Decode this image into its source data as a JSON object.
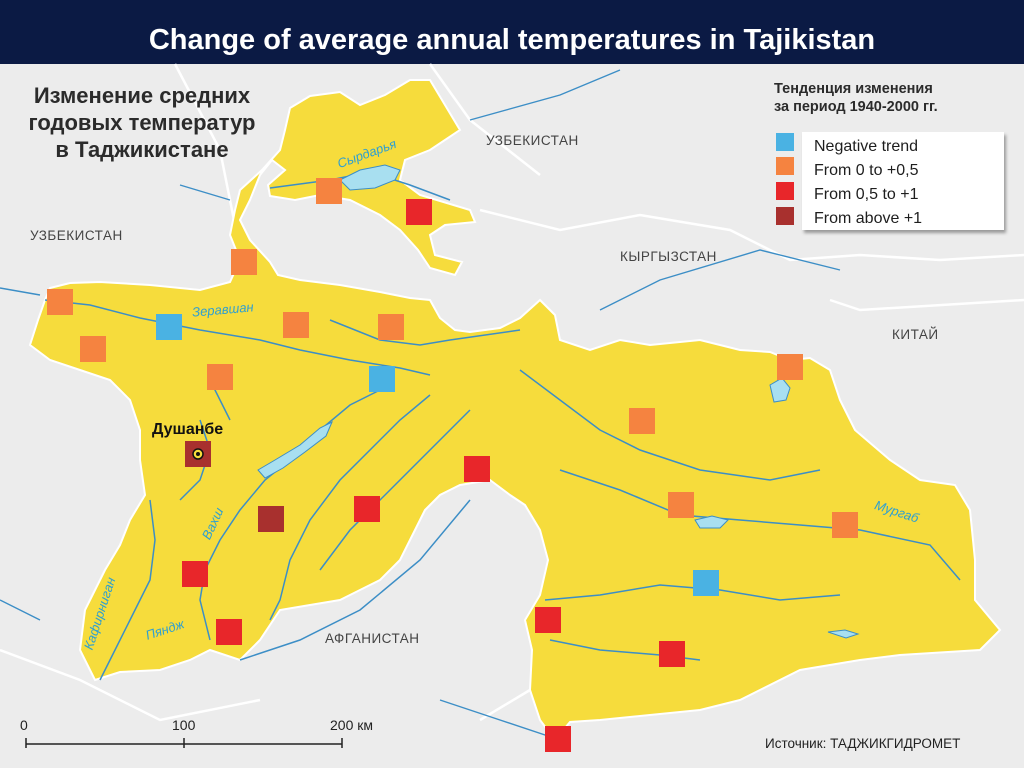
{
  "slide_title": "Change of average annual temperatures in Tajikistan",
  "map_heading": [
    "Изменение средних",
    "годовых температур",
    "в Таджикистане"
  ],
  "legend_heading": [
    "Тенденция  изменения",
    "за период 1940-2000 гг."
  ],
  "legend": [
    {
      "label": "Negative trend",
      "color": "#4ab2e3"
    },
    {
      "label": "From 0 to +0,5",
      "color": "#f58340"
    },
    {
      "label": "From 0,5 to +1",
      "color": "#e8262a"
    },
    {
      "label": "From above +1",
      "color": "#a8302e"
    }
  ],
  "colors": {
    "tajikistan_fill": "#f6dc3c",
    "background": "#ececec",
    "title_bar": "#0b1a44",
    "river": "#3c8ec6",
    "lake": "#a8dff0"
  },
  "countries": {
    "uzbekistan_west": "УЗБЕКИСТАН",
    "uzbekistan_north": "УЗБЕКИСТАН",
    "kyrgyzstan": "КЫРГЫЗСТАН",
    "china": "КИТАЙ",
    "afghanistan": "АФГАНИСТАН"
  },
  "rivers": {
    "syrdarya": "Сырдарья",
    "zeravshan": "Зеравшан",
    "vakhsh": "Вахш",
    "kafirnigan": "Кафирниган",
    "pyanj": "Пяндж",
    "murgab": "Мургаб"
  },
  "capital": {
    "name": "Душанбе",
    "trend": "above_1"
  },
  "scale": {
    "zero": "0",
    "mid": "100",
    "max": "200 км"
  },
  "source": "Источник: ТАДЖИКГИДРОМЕТ",
  "stations": [
    {
      "trend": "0_to_0.5"
    },
    {
      "trend": "0.5_to_1"
    },
    {
      "trend": "0_to_0.5"
    },
    {
      "trend": "0_to_0.5"
    },
    {
      "trend": "negative"
    },
    {
      "trend": "0_to_0.5"
    },
    {
      "trend": "0_to_0.5"
    },
    {
      "trend": "0_to_0.5"
    },
    {
      "trend": "0_to_0.5"
    },
    {
      "trend": "negative"
    },
    {
      "trend": "0_to_0.5"
    },
    {
      "trend": "0_to_0.5"
    },
    {
      "trend": "0.5_to_1"
    },
    {
      "trend": "above_1"
    },
    {
      "trend": "0.5_to_1"
    },
    {
      "trend": "0_to_0.5"
    },
    {
      "trend": "0_to_0.5"
    },
    {
      "trend": "0.5_to_1"
    },
    {
      "trend": "0.5_to_1"
    },
    {
      "trend": "negative"
    },
    {
      "trend": "0.5_to_1"
    },
    {
      "trend": "0.5_to_1"
    },
    {
      "trend": "0.5_to_1"
    }
  ],
  "trend_colors": {
    "negative": "#4ab2e3",
    "0_to_0.5": "#f58340",
    "0.5_to_1": "#e8262a",
    "above_1": "#a8302e"
  }
}
